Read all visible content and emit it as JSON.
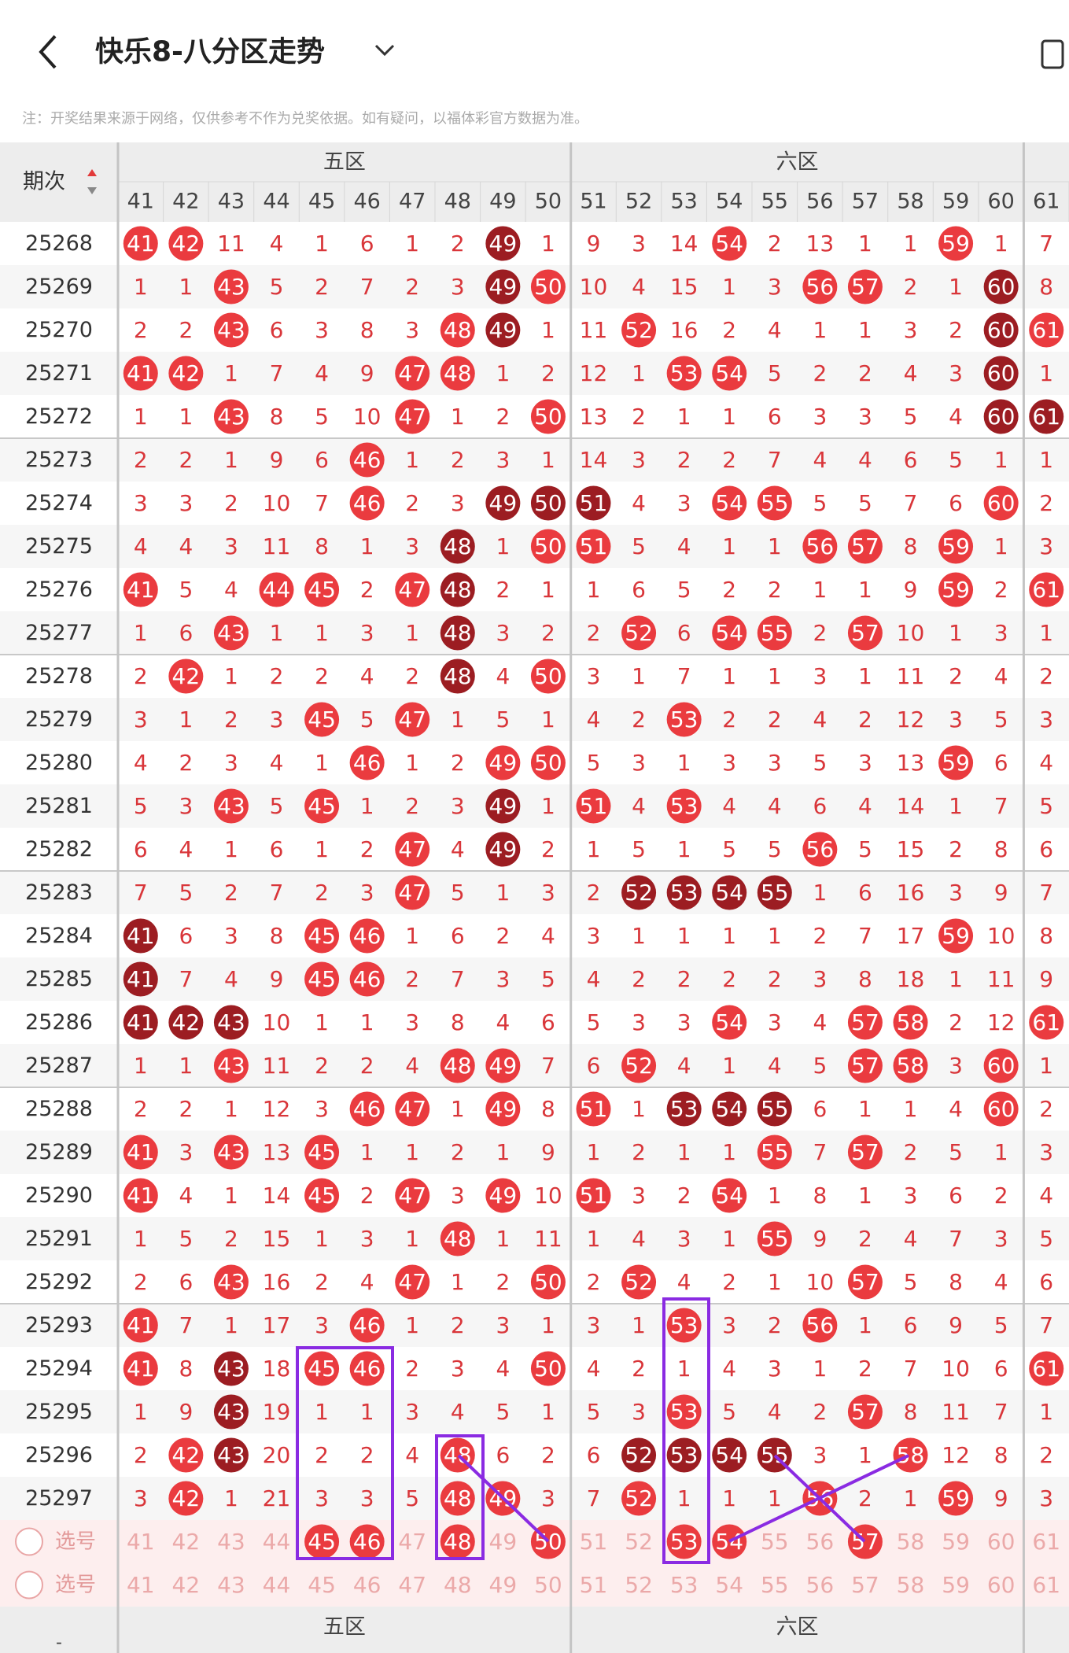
{
  "header": {
    "title": "快乐8-八分区走势",
    "note": "注：开奖结果来源于网络，仅供参考不作为兑奖依据。如有疑问，以福体彩官方数据为准。"
  },
  "table": {
    "period_label": "期次",
    "zones": [
      "五区",
      "六区"
    ],
    "columns": [
      41,
      42,
      43,
      44,
      45,
      46,
      47,
      48,
      49,
      50,
      51,
      52,
      53,
      54,
      55,
      56,
      57,
      58,
      59,
      60,
      61
    ],
    "rows": [
      {
        "period": "25268",
        "cells": [
          41,
          42,
          11,
          4,
          1,
          6,
          1,
          2,
          49,
          1,
          9,
          3,
          14,
          54,
          2,
          13,
          1,
          1,
          59,
          1,
          7
        ],
        "dark": [
          8
        ]
      },
      {
        "period": "25269",
        "cells": [
          1,
          1,
          43,
          5,
          2,
          7,
          2,
          3,
          49,
          50,
          10,
          4,
          15,
          1,
          3,
          56,
          57,
          2,
          1,
          60,
          8
        ],
        "dark": [
          8,
          19
        ]
      },
      {
        "period": "25270",
        "cells": [
          2,
          2,
          43,
          6,
          3,
          8,
          3,
          48,
          49,
          1,
          11,
          52,
          16,
          2,
          4,
          1,
          1,
          3,
          2,
          60,
          61
        ],
        "dark": [
          8,
          19
        ]
      },
      {
        "period": "25271",
        "cells": [
          41,
          42,
          1,
          7,
          4,
          9,
          47,
          48,
          1,
          2,
          12,
          1,
          53,
          54,
          5,
          2,
          2,
          4,
          3,
          60,
          1
        ],
        "dark": [
          19
        ]
      },
      {
        "period": "25272",
        "cells": [
          1,
          1,
          43,
          8,
          5,
          10,
          47,
          1,
          2,
          50,
          13,
          2,
          1,
          1,
          6,
          3,
          3,
          5,
          4,
          60,
          61
        ],
        "dark": [
          19,
          20
        ]
      },
      {
        "period": "25273",
        "cells": [
          2,
          2,
          1,
          9,
          6,
          46,
          1,
          2,
          3,
          1,
          14,
          3,
          2,
          2,
          7,
          4,
          4,
          6,
          5,
          1,
          1
        ],
        "dark": []
      },
      {
        "period": "25274",
        "cells": [
          3,
          3,
          2,
          10,
          7,
          46,
          2,
          3,
          49,
          50,
          51,
          4,
          3,
          54,
          55,
          5,
          5,
          7,
          6,
          60,
          2
        ],
        "dark": [
          8,
          9,
          10
        ]
      },
      {
        "period": "25275",
        "cells": [
          4,
          4,
          3,
          11,
          8,
          1,
          3,
          48,
          1,
          50,
          51,
          5,
          4,
          1,
          1,
          56,
          57,
          8,
          59,
          1,
          3
        ],
        "dark": [
          7
        ]
      },
      {
        "period": "25276",
        "cells": [
          41,
          5,
          4,
          44,
          45,
          2,
          47,
          48,
          2,
          1,
          1,
          6,
          5,
          2,
          2,
          1,
          1,
          9,
          59,
          2,
          61
        ],
        "dark": [
          7
        ]
      },
      {
        "period": "25277",
        "cells": [
          1,
          6,
          43,
          1,
          1,
          3,
          1,
          48,
          3,
          2,
          2,
          52,
          6,
          54,
          55,
          2,
          57,
          10,
          1,
          3,
          1
        ],
        "dark": [
          7
        ]
      },
      {
        "period": "25278",
        "cells": [
          2,
          42,
          1,
          2,
          2,
          4,
          2,
          48,
          4,
          50,
          3,
          1,
          7,
          1,
          1,
          3,
          1,
          11,
          2,
          4,
          2
        ],
        "dark": [
          7
        ]
      },
      {
        "period": "25279",
        "cells": [
          3,
          1,
          2,
          3,
          45,
          5,
          47,
          1,
          5,
          1,
          4,
          2,
          53,
          2,
          2,
          4,
          2,
          12,
          3,
          5,
          3
        ],
        "dark": []
      },
      {
        "period": "25280",
        "cells": [
          4,
          2,
          3,
          4,
          1,
          46,
          1,
          2,
          49,
          50,
          5,
          3,
          1,
          3,
          3,
          5,
          3,
          13,
          59,
          6,
          4
        ],
        "dark": []
      },
      {
        "period": "25281",
        "cells": [
          5,
          3,
          43,
          5,
          45,
          1,
          2,
          3,
          49,
          1,
          51,
          4,
          53,
          4,
          4,
          6,
          4,
          14,
          1,
          7,
          5
        ],
        "dark": [
          8
        ]
      },
      {
        "period": "25282",
        "cells": [
          6,
          4,
          1,
          6,
          1,
          2,
          47,
          4,
          49,
          2,
          1,
          5,
          1,
          5,
          5,
          56,
          5,
          15,
          2,
          8,
          6
        ],
        "dark": [
          8
        ]
      },
      {
        "period": "25283",
        "cells": [
          7,
          5,
          2,
          7,
          2,
          3,
          47,
          5,
          1,
          3,
          2,
          52,
          53,
          54,
          55,
          1,
          6,
          16,
          3,
          9,
          7
        ],
        "dark": [
          11,
          12,
          13,
          14
        ]
      },
      {
        "period": "25284",
        "cells": [
          41,
          6,
          3,
          8,
          45,
          46,
          1,
          6,
          2,
          4,
          3,
          1,
          1,
          1,
          1,
          2,
          7,
          17,
          59,
          10,
          8
        ],
        "dark": [
          0
        ]
      },
      {
        "period": "25285",
        "cells": [
          41,
          7,
          4,
          9,
          45,
          46,
          2,
          7,
          3,
          5,
          4,
          2,
          2,
          2,
          2,
          3,
          8,
          18,
          1,
          11,
          9
        ],
        "dark": [
          0
        ]
      },
      {
        "period": "25286",
        "cells": [
          41,
          42,
          43,
          10,
          1,
          1,
          3,
          8,
          4,
          6,
          5,
          3,
          3,
          54,
          3,
          4,
          57,
          58,
          2,
          12,
          61
        ],
        "dark": [
          0,
          1,
          2
        ]
      },
      {
        "period": "25287",
        "cells": [
          1,
          1,
          43,
          11,
          2,
          2,
          4,
          48,
          49,
          7,
          6,
          52,
          4,
          1,
          4,
          5,
          57,
          58,
          3,
          60,
          1
        ],
        "dark": []
      },
      {
        "period": "25288",
        "cells": [
          2,
          2,
          1,
          12,
          3,
          46,
          47,
          1,
          49,
          8,
          51,
          1,
          53,
          54,
          55,
          6,
          1,
          1,
          4,
          60,
          2
        ],
        "dark": [
          12,
          13,
          14
        ]
      },
      {
        "period": "25289",
        "cells": [
          41,
          3,
          43,
          13,
          45,
          1,
          1,
          2,
          1,
          9,
          1,
          2,
          1,
          1,
          55,
          7,
          57,
          2,
          5,
          1,
          3
        ],
        "dark": []
      },
      {
        "period": "25290",
        "cells": [
          41,
          4,
          1,
          14,
          45,
          2,
          47,
          3,
          49,
          10,
          51,
          3,
          2,
          54,
          1,
          8,
          1,
          3,
          6,
          2,
          4
        ],
        "dark": []
      },
      {
        "period": "25291",
        "cells": [
          1,
          5,
          2,
          15,
          1,
          3,
          1,
          48,
          1,
          11,
          1,
          4,
          3,
          1,
          55,
          9,
          2,
          4,
          7,
          3,
          5
        ],
        "dark": []
      },
      {
        "period": "25292",
        "cells": [
          2,
          6,
          43,
          16,
          2,
          4,
          47,
          1,
          2,
          50,
          2,
          52,
          4,
          2,
          1,
          10,
          57,
          5,
          8,
          4,
          6
        ],
        "dark": []
      },
      {
        "period": "25293",
        "cells": [
          41,
          7,
          1,
          17,
          3,
          46,
          1,
          2,
          3,
          1,
          3,
          1,
          53,
          3,
          2,
          56,
          1,
          6,
          9,
          5,
          7
        ],
        "dark": []
      },
      {
        "period": "25294",
        "cells": [
          41,
          8,
          43,
          18,
          45,
          46,
          2,
          3,
          4,
          50,
          4,
          2,
          1,
          4,
          3,
          1,
          2,
          7,
          10,
          6,
          61
        ],
        "dark": [
          2
        ]
      },
      {
        "period": "25295",
        "cells": [
          1,
          9,
          43,
          19,
          1,
          1,
          3,
          4,
          5,
          1,
          5,
          3,
          53,
          5,
          4,
          2,
          57,
          8,
          11,
          7,
          1
        ],
        "dark": [
          2
        ]
      },
      {
        "period": "25296",
        "cells": [
          2,
          42,
          43,
          20,
          2,
          2,
          4,
          48,
          6,
          2,
          6,
          52,
          53,
          54,
          55,
          3,
          1,
          58,
          12,
          8,
          2
        ],
        "dark": [
          2,
          11,
          12,
          13,
          14
        ]
      },
      {
        "period": "25297",
        "cells": [
          3,
          42,
          1,
          21,
          3,
          3,
          5,
          48,
          49,
          3,
          7,
          52,
          1,
          1,
          1,
          56,
          2,
          1,
          59,
          9,
          3
        ],
        "dark": []
      }
    ],
    "picks": [
      {
        "label": "选号",
        "cells": [
          41,
          42,
          43,
          44,
          45,
          46,
          47,
          48,
          49,
          50,
          51,
          52,
          53,
          54,
          55,
          56,
          57,
          58,
          59,
          60,
          61
        ],
        "selected": [
          4,
          5,
          7,
          9,
          12,
          13,
          16
        ]
      },
      {
        "label": "选号",
        "cells": [
          41,
          42,
          43,
          44,
          45,
          46,
          47,
          48,
          49,
          50,
          51,
          52,
          53,
          54,
          55,
          56,
          57,
          58,
          59,
          60,
          61
        ],
        "selected": []
      }
    ]
  },
  "footer": {
    "zones": [
      "五区",
      "六区"
    ],
    "period_label": "-"
  }
}
